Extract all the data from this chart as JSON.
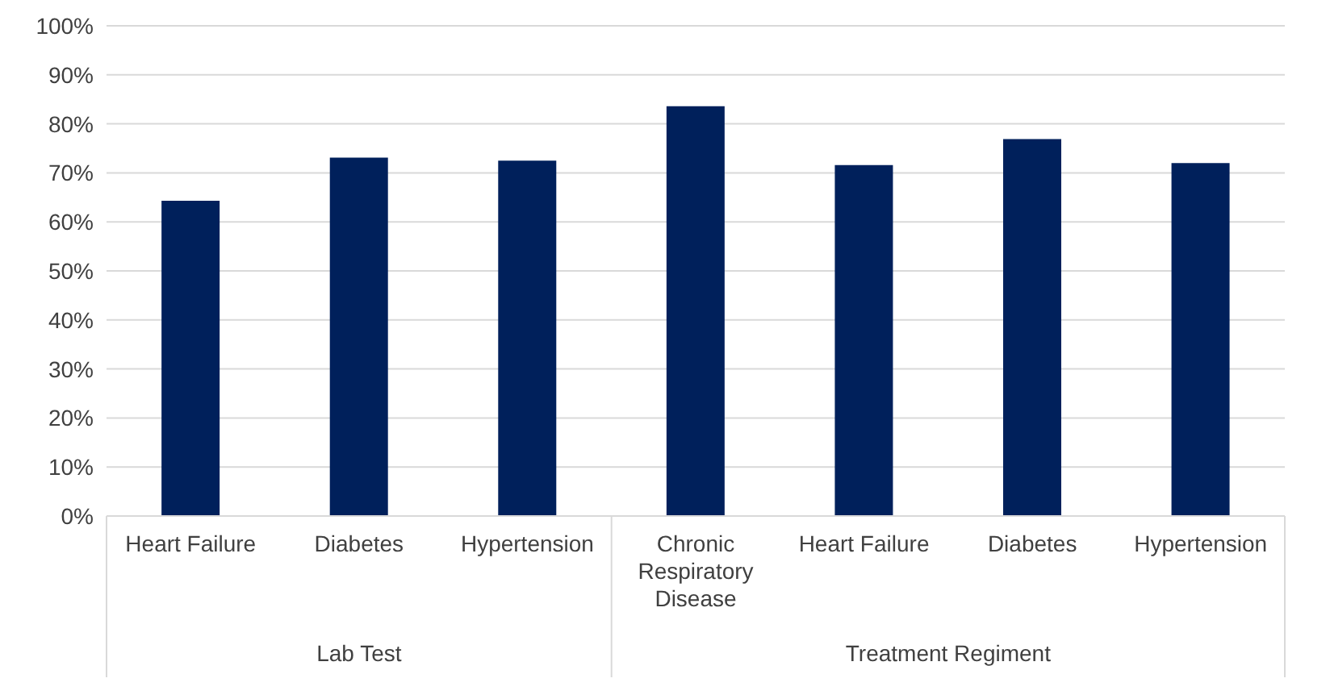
{
  "chart_data": {
    "type": "bar",
    "categories": [
      "Heart Failure",
      "Diabetes",
      "Hypertension",
      "Chronic Respiratory Disease",
      "Heart Failure",
      "Diabetes",
      "Hypertension"
    ],
    "values": [
      64.3,
      73.1,
      72.5,
      83.6,
      71.6,
      76.9,
      72.0
    ],
    "color": "#00205b",
    "ylim": [
      0,
      100
    ],
    "yticks": [
      {
        "value": 0,
        "label": "0%"
      },
      {
        "value": 10,
        "label": "10%"
      },
      {
        "value": 20,
        "label": "20%"
      },
      {
        "value": 30,
        "label": "30%"
      },
      {
        "value": 40,
        "label": "40%"
      },
      {
        "value": 50,
        "label": "50%"
      },
      {
        "value": 60,
        "label": "60%"
      },
      {
        "value": 70,
        "label": "70%"
      },
      {
        "value": 80,
        "label": "80%"
      },
      {
        "value": 90,
        "label": "90%"
      },
      {
        "value": 100,
        "label": "100%"
      }
    ],
    "grid": "y",
    "annotations": [
      "Lab Test",
      "Treatment Regiment"
    ]
  }
}
